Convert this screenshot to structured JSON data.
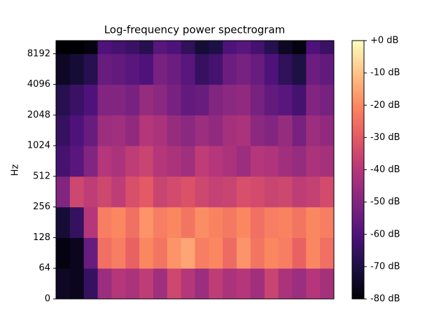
{
  "chart_data": {
    "type": "heatmap",
    "title": "Log-frequency power spectrogram",
    "y_label": "Hz",
    "yscale": "symlog",
    "linthresh": 64,
    "ylim": [
      0,
      11025
    ],
    "yticks": [
      0,
      64,
      128,
      256,
      512,
      1024,
      2048,
      4096,
      8192
    ],
    "y_bins": [
      0,
      64,
      128,
      256,
      512,
      1024,
      2048,
      4096,
      8192,
      11025
    ],
    "colormap": "magma",
    "clim": [
      -80,
      0
    ],
    "cticks": [
      {
        "value": 0,
        "label": "+0 dB"
      },
      {
        "value": -10,
        "label": "-10 dB"
      },
      {
        "value": -20,
        "label": "-20 dB"
      },
      {
        "value": -30,
        "label": "-30 dB"
      },
      {
        "value": -40,
        "label": "-40 dB"
      },
      {
        "value": -50,
        "label": "-50 dB"
      },
      {
        "value": -60,
        "label": "-60 dB"
      },
      {
        "value": -70,
        "label": "-70 dB"
      },
      {
        "value": -80,
        "label": "-80 dB"
      }
    ],
    "z": [
      [
        -75,
        -76,
        -65,
        -45,
        -40,
        -42,
        -38,
        -44,
        -35,
        -40,
        -45,
        -38,
        -42,
        -40,
        -44,
        -36,
        -42,
        -45,
        -40,
        -43
      ],
      [
        -78,
        -76,
        -55,
        -25,
        -22,
        -28,
        -20,
        -24,
        -18,
        -15,
        -22,
        -20,
        -26,
        -18,
        -24,
        -20,
        -22,
        -28,
        -20,
        -25
      ],
      [
        -72,
        -65,
        -40,
        -22,
        -20,
        -25,
        -18,
        -22,
        -20,
        -24,
        -19,
        -21,
        -23,
        -20,
        -25,
        -22,
        -21,
        -24,
        -20,
        -22
      ],
      [
        -50,
        -35,
        -38,
        -35,
        -38,
        -33,
        -30,
        -36,
        -34,
        -32,
        -35,
        -37,
        -36,
        -33,
        -34,
        -36,
        -35,
        -38,
        -37,
        -34
      ],
      [
        -62,
        -58,
        -50,
        -40,
        -42,
        -38,
        -36,
        -40,
        -42,
        -44,
        -38,
        -40,
        -42,
        -45,
        -40,
        -41,
        -44,
        -46,
        -42,
        -43
      ],
      [
        -65,
        -60,
        -55,
        -45,
        -44,
        -47,
        -40,
        -42,
        -46,
        -48,
        -45,
        -47,
        -43,
        -42,
        -48,
        -50,
        -46,
        -52,
        -45,
        -47
      ],
      [
        -68,
        -64,
        -60,
        -50,
        -50,
        -52,
        -46,
        -48,
        -52,
        -56,
        -55,
        -50,
        -48,
        -47,
        -52,
        -56,
        -58,
        -62,
        -50,
        -52
      ],
      [
        -75,
        -72,
        -68,
        -55,
        -56,
        -58,
        -60,
        -52,
        -54,
        -58,
        -65,
        -62,
        -54,
        -52,
        -55,
        -60,
        -66,
        -70,
        -54,
        -56
      ],
      [
        -80,
        -80,
        -78,
        -60,
        -62,
        -64,
        -68,
        -58,
        -60,
        -66,
        -72,
        -70,
        -60,
        -58,
        -62,
        -68,
        -75,
        -78,
        -60,
        -64
      ]
    ]
  }
}
